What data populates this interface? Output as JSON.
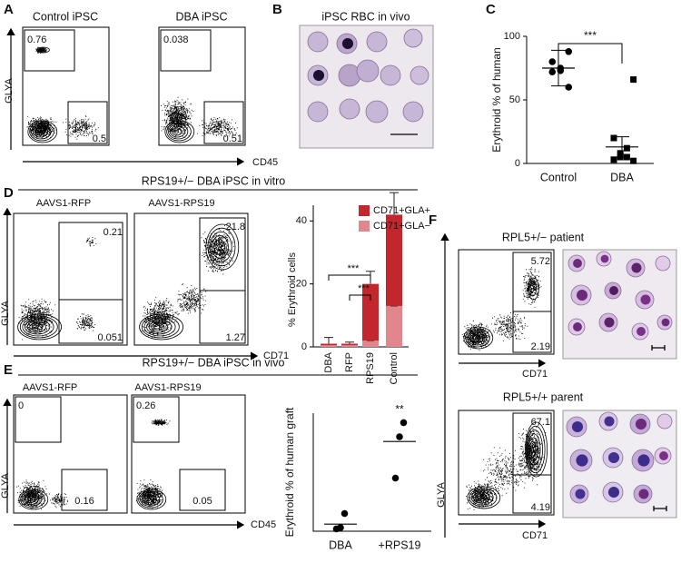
{
  "figure": {
    "panel_labels": [
      "A",
      "B",
      "C",
      "D",
      "E",
      "F"
    ],
    "a": {
      "titles": [
        "Control iPSC",
        "DBA iPSC"
      ],
      "y_label": "GLYA",
      "x_label": "CD45",
      "gates": [
        [
          0.76,
          0.5
        ],
        [
          0.038,
          0.51
        ]
      ]
    },
    "b": {
      "title": "iPSC RBC in vivo"
    },
    "d": {
      "title": "RPS19+/− DBA iPSC in vitro",
      "plots": [
        "AAVS1-RFP",
        "AAVS1-RPS19"
      ],
      "y_label": "GLYA",
      "x_label": "CD71",
      "gates": [
        [
          0.21,
          0.051
        ],
        [
          21.8,
          1.27
        ]
      ]
    },
    "e": {
      "title": "RPS19+/− DBA iPSC in vivo",
      "plots": [
        "AAVS1-RFP",
        "AAVS1-RPS19"
      ],
      "y_label": "GLYA",
      "x_label": "CD45",
      "gates": [
        [
          0,
          0.16
        ],
        [
          0.26,
          0.05
        ]
      ]
    },
    "f": {
      "y_label": "GLYA",
      "plots": [
        {
          "title": "RPL5+/− patient",
          "gates": [
            5.72,
            2.19
          ],
          "x_label": "CD71"
        },
        {
          "title": "RPL5+/+ parent",
          "gates": [
            67.1,
            4.19
          ],
          "x_label": "CD71"
        }
      ]
    }
  },
  "chart_data": [
    {
      "type": "dot-scatter",
      "y_label": "Erythroid % of human",
      "categories": [
        "Control",
        "DBA"
      ],
      "points": [
        [
          88,
          80,
          75,
          73,
          72,
          60
        ],
        [
          66,
          20,
          12,
          8,
          5,
          5,
          3,
          2
        ]
      ],
      "markers": [
        "circle",
        "square"
      ],
      "means": [
        75,
        13
      ],
      "errors": [
        14,
        8
      ],
      "significance": "***",
      "ylim": [
        0,
        100
      ],
      "yticks": [
        0,
        50,
        100
      ],
      "color": "#000000"
    },
    {
      "type": "stacked-bar",
      "y_label": "% Erythroid cells",
      "categories": [
        "DBA",
        "RFP",
        "RPS19",
        "Control"
      ],
      "series": [
        {
          "name": "CD71+GLA−",
          "color": "#e0868c",
          "values": [
            0.5,
            0.5,
            2,
            13
          ]
        },
        {
          "name": "CD71+GLA+",
          "color": "#c1272d",
          "values": [
            0.5,
            0.5,
            18,
            29
          ]
        }
      ],
      "errors": [
        2,
        0.5,
        4,
        7
      ],
      "significance": [
        "***",
        "***"
      ],
      "ylim": [
        0,
        45
      ],
      "yticks": [
        0,
        20,
        40
      ]
    },
    {
      "type": "dot-scatter",
      "y_label": "Erythroid % of human graft",
      "categories": [
        "DBA",
        "+RPS19"
      ],
      "points": [
        [
          15,
          3,
          2
        ],
        [
          92,
          80,
          45
        ]
      ],
      "markers": [
        "circle",
        "circle"
      ],
      "means": [
        6,
        76
      ],
      "significance": "**",
      "ylim": [
        0,
        100
      ],
      "color": "#000000"
    }
  ]
}
